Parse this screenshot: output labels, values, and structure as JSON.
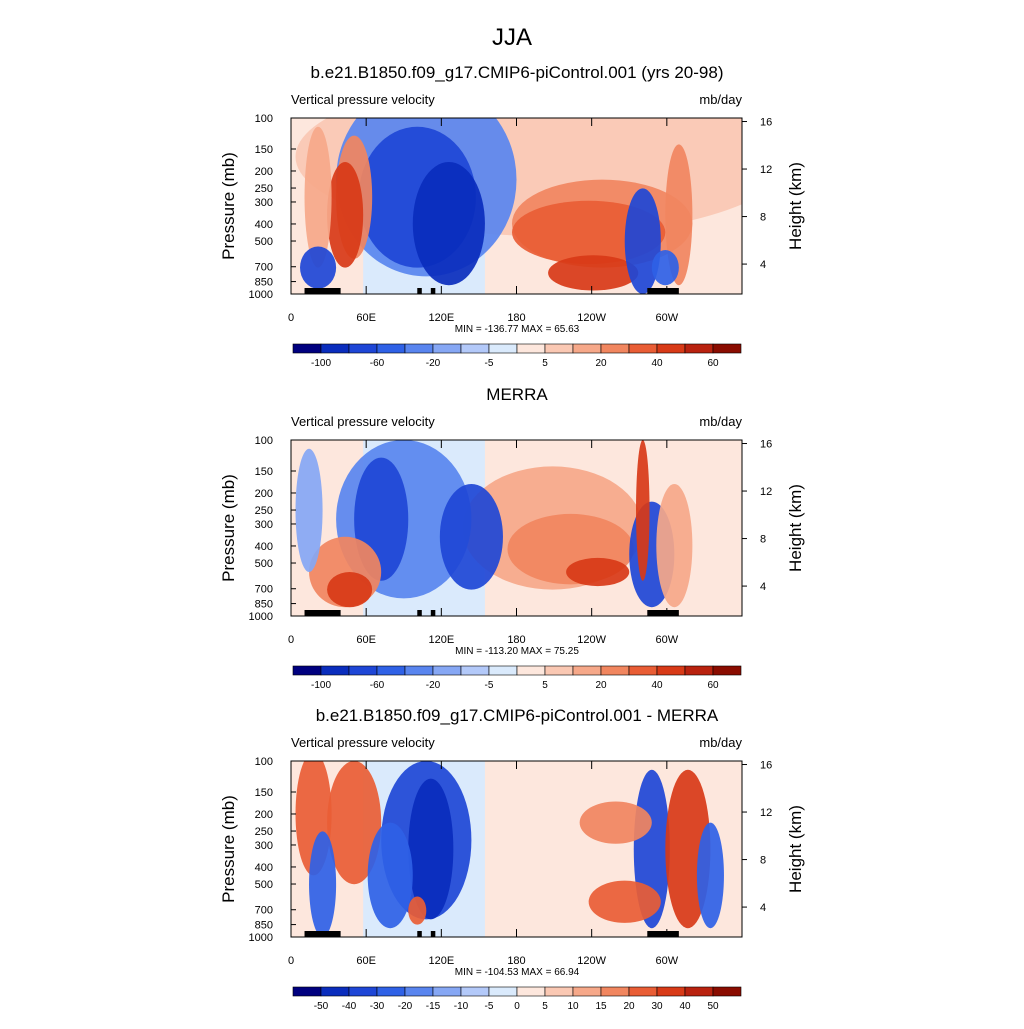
{
  "figure_title": "JJA",
  "colors": {
    "bar_scale_a": [
      "#00007f",
      "#0a2dbd",
      "#1e46d6",
      "#2f61e6",
      "#5985ef",
      "#86a7f4",
      "#b3c9f9",
      "#daeafc",
      "#fde7dd",
      "#fac8b3",
      "#f6a889",
      "#f1865f",
      "#e95d35",
      "#d83a17",
      "#b9220f",
      "#8a0c00"
    ],
    "bar_scale_b": [
      "#00007f",
      "#0a2dbd",
      "#1e46d6",
      "#2f61e6",
      "#5985ef",
      "#86a7f4",
      "#b3c9f9",
      "#daeafc",
      "#fde7dd",
      "#fac8b3",
      "#f6a889",
      "#f1865f",
      "#e95d35",
      "#d83a17",
      "#b9220f",
      "#8a0c00"
    ]
  },
  "chart_data": [
    {
      "type": "heatmap",
      "title": "b.e21.B1850.f09_g17.CMIP6-piControl.001 (yrs 20-98)",
      "left_label": "Vertical pressure velocity",
      "units": "mb/day",
      "ylabel": "Pressure (mb)",
      "right_ylabel": "Height (km)",
      "y_ticks": [
        "100",
        "150",
        "200",
        "250",
        "300",
        "400",
        "500",
        "700",
        "850",
        "1000"
      ],
      "right_ticks": [
        "16",
        "12",
        "8",
        "4"
      ],
      "x_ticks": [
        "0",
        "60E",
        "120E",
        "180",
        "120W",
        "60W"
      ],
      "stats": "MIN = -136.77  MAX =  65.63",
      "colorbar_labels": [
        "-100",
        "-60",
        "-20",
        "-5",
        "5",
        "20",
        "40",
        "60"
      ],
      "colorbar_label_positions": [
        1,
        3,
        5,
        7,
        9,
        11,
        13,
        15
      ]
    },
    {
      "type": "heatmap",
      "title": "MERRA",
      "left_label": "Vertical pressure velocity",
      "units": "mb/day",
      "ylabel": "Pressure (mb)",
      "right_ylabel": "Height (km)",
      "y_ticks": [
        "100",
        "150",
        "200",
        "250",
        "300",
        "400",
        "500",
        "700",
        "850",
        "1000"
      ],
      "right_ticks": [
        "16",
        "12",
        "8",
        "4"
      ],
      "x_ticks": [
        "0",
        "60E",
        "120E",
        "180",
        "120W",
        "60W"
      ],
      "stats": "MIN = -113.20  MAX =  75.25",
      "colorbar_labels": [
        "-100",
        "-60",
        "-20",
        "-5",
        "5",
        "20",
        "40",
        "60"
      ],
      "colorbar_label_positions": [
        1,
        3,
        5,
        7,
        9,
        11,
        13,
        15
      ]
    },
    {
      "type": "heatmap",
      "title": "b.e21.B1850.f09_g17.CMIP6-piControl.001 - MERRA",
      "left_label": "Vertical pressure velocity",
      "units": "mb/day",
      "ylabel": "Pressure (mb)",
      "right_ylabel": "Height (km)",
      "y_ticks": [
        "100",
        "150",
        "200",
        "250",
        "300",
        "400",
        "500",
        "700",
        "850",
        "1000"
      ],
      "right_ticks": [
        "16",
        "12",
        "8",
        "4"
      ],
      "x_ticks": [
        "0",
        "60E",
        "120E",
        "180",
        "120W",
        "60W"
      ],
      "stats": "MIN = -104.53  MAX =  66.94",
      "colorbar_labels": [
        "-50",
        "-40",
        "-30",
        "-20",
        "-15",
        "-10",
        "-5",
        "0",
        "5",
        "10",
        "15",
        "20",
        "30",
        "40",
        "50"
      ],
      "colorbar_label_positions": [
        1,
        2,
        3,
        4,
        5,
        6,
        7,
        8,
        9,
        10,
        11,
        12,
        13,
        14,
        15
      ]
    }
  ]
}
